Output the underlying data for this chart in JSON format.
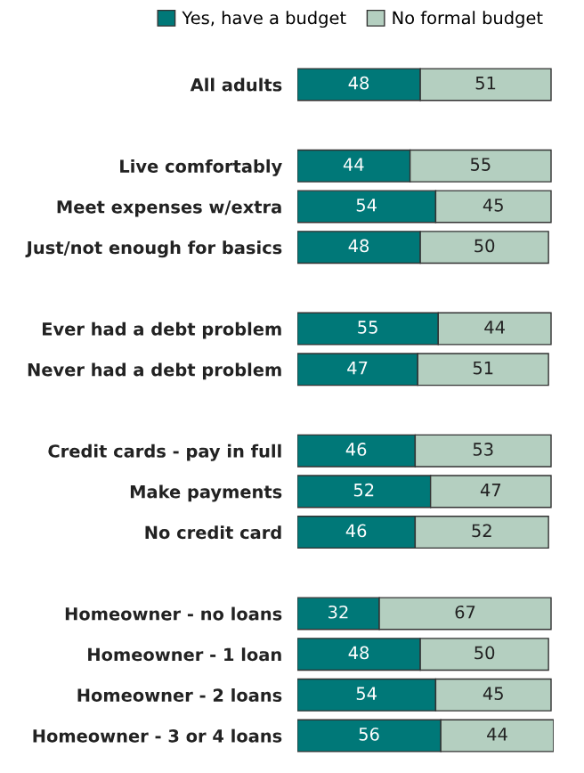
{
  "chart_data": {
    "type": "bar",
    "orientation": "horizontal",
    "stacked": true,
    "data_labels": true,
    "legend": "top",
    "grid": false,
    "tick_labels": "y",
    "xlim": [
      0,
      100
    ],
    "categories": [
      "All adults",
      null,
      "Live comfortably",
      "Meet expenses w/extra",
      "Just/not enough for basics",
      null,
      "Ever had a debt problem",
      "Never had a debt problem",
      null,
      "Credit cards - pay in full",
      "Make payments",
      "No credit card",
      null,
      "Homeowner - no loans",
      "Homeowner - 1 loan",
      "Homeowner - 2 loans",
      "Homeowner - 3 or 4 loans"
    ],
    "series": [
      {
        "name": "Yes, have a budget",
        "color": "#007878",
        "values": [
          48,
          null,
          44,
          54,
          48,
          null,
          55,
          47,
          null,
          46,
          52,
          46,
          null,
          32,
          48,
          54,
          56
        ]
      },
      {
        "name": "No formal budget",
        "color": "#b4cfc0",
        "values": [
          51,
          null,
          55,
          45,
          50,
          null,
          44,
          51,
          null,
          53,
          47,
          52,
          null,
          67,
          50,
          45,
          44
        ]
      }
    ]
  }
}
